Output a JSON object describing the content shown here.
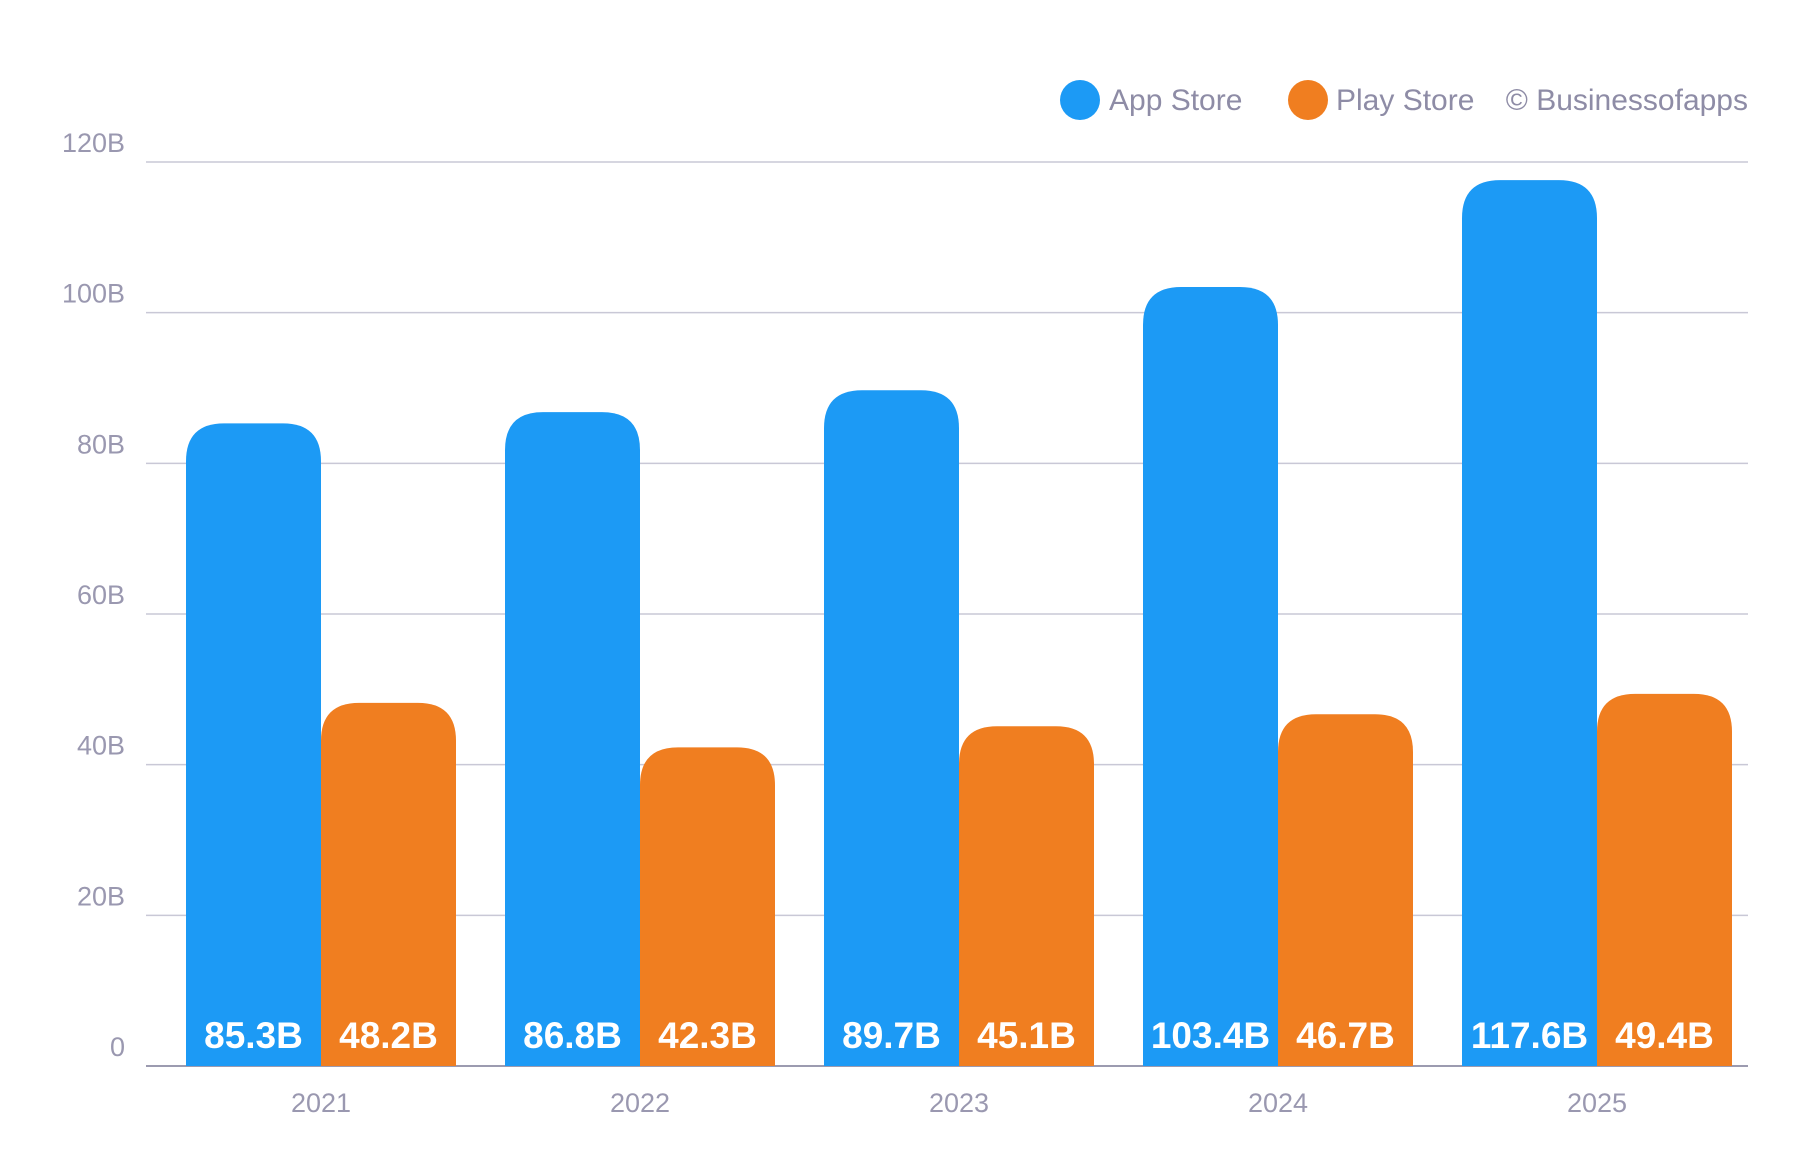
{
  "chart_data": {
    "type": "bar",
    "title": "",
    "xlabel": "",
    "ylabel": "",
    "categories": [
      "2021",
      "2022",
      "2023",
      "2024",
      "2025"
    ],
    "series": [
      {
        "name": "App Store",
        "color": "#1c9af5",
        "values": [
          85.3,
          86.8,
          89.7,
          103.4,
          117.6
        ],
        "labels": [
          "85.3B",
          "86.8B",
          "89.7B",
          "103.4B",
          "117.6B"
        ]
      },
      {
        "name": "Play Store",
        "color": "#f07e20",
        "values": [
          48.2,
          42.3,
          45.1,
          46.7,
          49.4
        ],
        "labels": [
          "48.2B",
          "42.3B",
          "45.1B",
          "46.7B",
          "49.4B"
        ]
      }
    ],
    "ylim": [
      0,
      120
    ],
    "yticks": [
      0,
      20,
      40,
      60,
      80,
      100,
      120
    ],
    "ytick_labels": [
      "0",
      "20B",
      "40B",
      "60B",
      "80B",
      "100B",
      "120B"
    ],
    "grid": true,
    "legend_position": "top-right",
    "source_text": "© Businessofapps"
  }
}
